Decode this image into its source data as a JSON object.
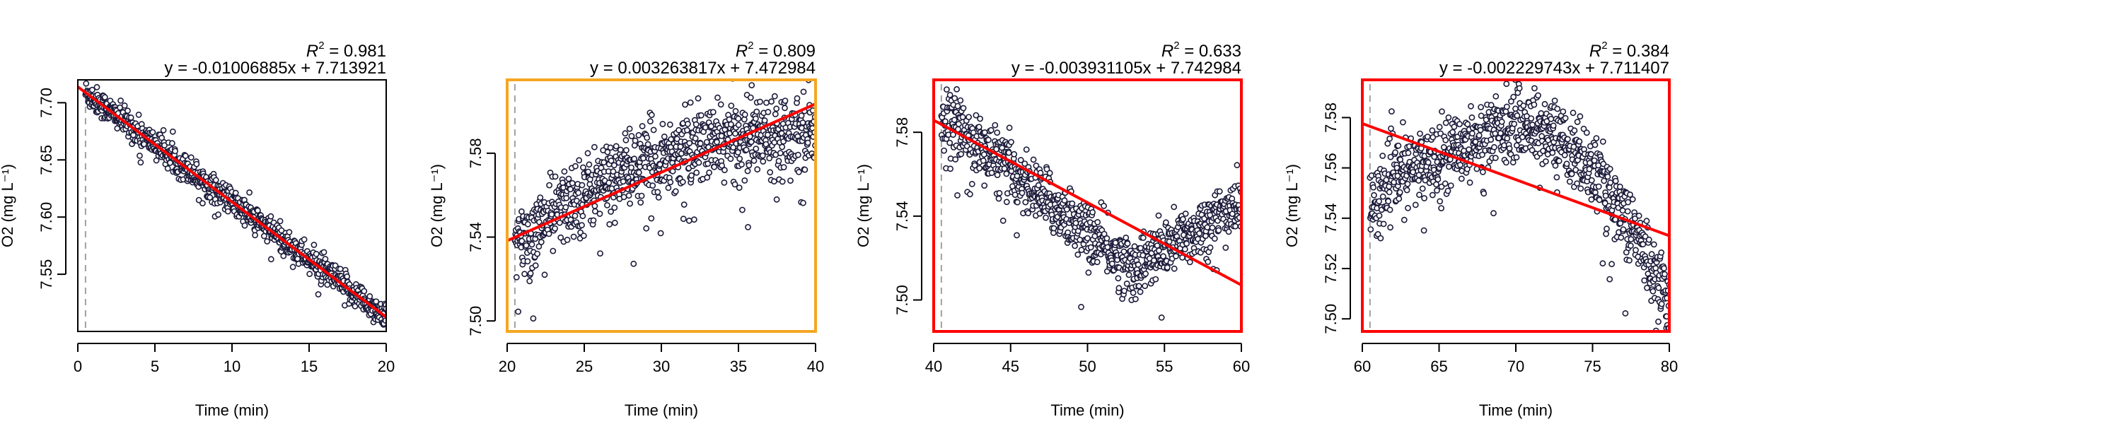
{
  "chart_data": [
    {
      "type": "scatter",
      "xlabel": "Time (min)",
      "ylabel": "O2 (mg L⁻¹)",
      "r2_label": "R",
      "r2_value": "= 0.981",
      "equation": "y = -0.01006885x + 7.713921",
      "xlim": [
        0,
        20
      ],
      "ylim": [
        7.5,
        7.72
      ],
      "xticks": [
        "0",
        "5",
        "10",
        "15",
        "20"
      ],
      "yticks": [
        "7.55",
        "7.60",
        "7.65",
        "7.70"
      ],
      "start_x": 0.5,
      "fit": {
        "slope": -0.01006885,
        "intercept": 7.713921
      },
      "frame_color": "#000000",
      "series": [
        {
          "pattern": "linear",
          "x_range": [
            0.5,
            20
          ],
          "noise": 0.006
        }
      ]
    },
    {
      "type": "scatter",
      "xlabel": "Time (min)",
      "ylabel": "O2 (mg L⁻¹)",
      "r2_label": "R",
      "r2_value": "= 0.809",
      "equation": "y = 0.003263817x + 7.472984",
      "xlim": [
        20,
        40
      ],
      "ylim": [
        7.495,
        7.615
      ],
      "xticks": [
        "20",
        "25",
        "30",
        "35",
        "40"
      ],
      "yticks": [
        "7.50",
        "7.54",
        "7.58"
      ],
      "start_x": 20.5,
      "fit": {
        "slope": 0.003263817,
        "intercept": 7.472984
      },
      "frame_color": "#f5a623",
      "series": [
        {
          "pattern": "rise",
          "x_range": [
            20.5,
            40
          ],
          "noise": 0.009
        }
      ]
    },
    {
      "type": "scatter",
      "xlabel": "Time (min)",
      "ylabel": "O2 (mg L⁻¹)",
      "r2_label": "R",
      "r2_value": "= 0.633",
      "equation": "y = -0.003931105x + 7.742984",
      "xlim": [
        40,
        60
      ],
      "ylim": [
        7.485,
        7.605
      ],
      "xticks": [
        "40",
        "45",
        "50",
        "55",
        "60"
      ],
      "yticks": [
        "7.50",
        "7.54",
        "7.58"
      ],
      "start_x": 40.5,
      "fit": {
        "slope": -0.003931105,
        "intercept": 7.742984
      },
      "frame_color": "#ff0000",
      "series": [
        {
          "pattern": "dip",
          "x_range": [
            40.5,
            60
          ],
          "noise": 0.007
        }
      ]
    },
    {
      "type": "scatter",
      "xlabel": "Time (min)",
      "ylabel": "O2 (mg L⁻¹)",
      "r2_label": "R",
      "r2_value": "= 0.384",
      "equation": "y = -0.002229743x + 7.711407",
      "xlim": [
        60,
        80
      ],
      "ylim": [
        7.495,
        7.595
      ],
      "xticks": [
        "60",
        "65",
        "70",
        "75",
        "80"
      ],
      "yticks": [
        "7.50",
        "7.52",
        "7.54",
        "7.56",
        "7.58"
      ],
      "start_x": 60.5,
      "fit": {
        "slope": -0.002229743,
        "intercept": 7.711407
      },
      "frame_color": "#ff0000",
      "series": [
        {
          "pattern": "hump",
          "x_range": [
            60.5,
            80
          ],
          "noise": 0.007
        }
      ]
    }
  ]
}
